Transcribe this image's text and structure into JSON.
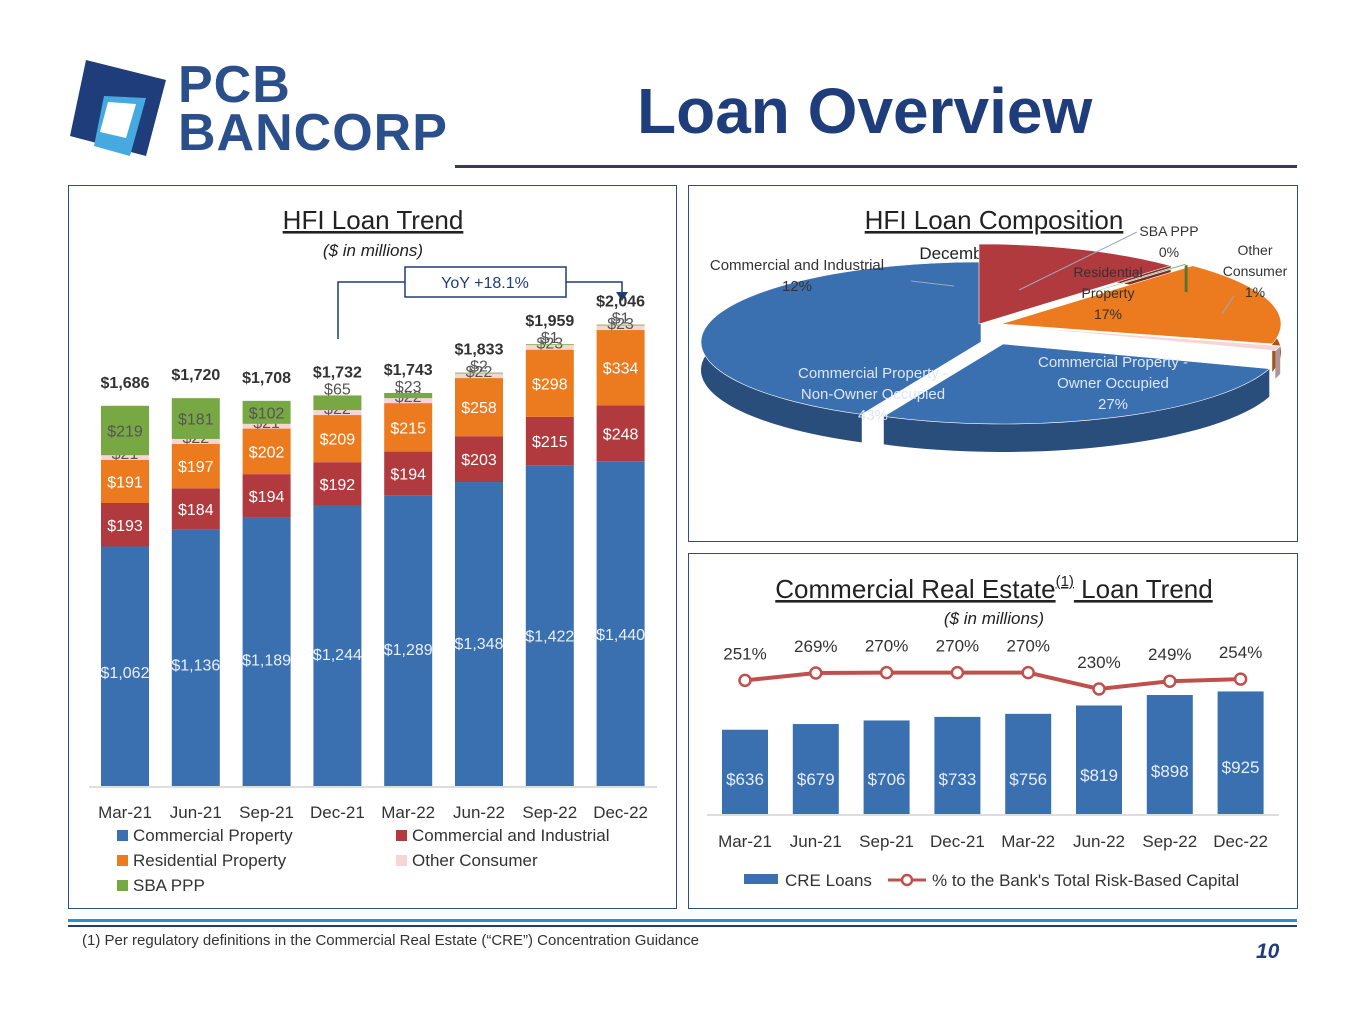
{
  "brand": {
    "name_line1": "PCB",
    "name_line2": "BANCORP",
    "colors": {
      "navy": "#1f3d7a",
      "blue": "#2e8fd0",
      "light_blue": "#46a9e0"
    }
  },
  "page": {
    "title": "Loan Overview",
    "footnote": "(1)   Per regulatory definitions in the Commercial Real Estate (“CRE”) Concentration Guidance",
    "page_number": "10"
  },
  "hfi_trend": {
    "title": "HFI Loan Trend",
    "subtitle": "($ in millions)",
    "annotation": "YoY +18.1%",
    "chart_data": {
      "type": "bar",
      "stacked": true,
      "categories": [
        "Mar-21",
        "Jun-21",
        "Sep-21",
        "Dec-21",
        "Mar-22",
        "Jun-22",
        "Sep-22",
        "Dec-22"
      ],
      "series": [
        {
          "name": "Commercial Property",
          "color": "#3a70b0",
          "values": [
            1062,
            1136,
            1189,
            1244,
            1289,
            1348,
            1422,
            1440
          ],
          "labels": [
            "$1,062",
            "$1,136",
            "$1,189",
            "$1,244",
            "$1,289",
            "$1,348",
            "$1,422",
            "$1,440"
          ]
        },
        {
          "name": "Commercial and Industrial",
          "color": "#b03a3e",
          "values": [
            193,
            184,
            194,
            192,
            194,
            203,
            215,
            248
          ],
          "labels": [
            "$193",
            "$184",
            "$194",
            "$192",
            "$194",
            "$203",
            "$215",
            "$248"
          ]
        },
        {
          "name": "Residential Property",
          "color": "#ec7a1e",
          "values": [
            191,
            197,
            202,
            209,
            215,
            258,
            298,
            334
          ],
          "labels": [
            "$191",
            "$197",
            "$202",
            "$209",
            "$215",
            "$258",
            "$298",
            "$334"
          ]
        },
        {
          "name": "Other Consumer",
          "color": "#f7d4d6",
          "values": [
            21,
            22,
            21,
            22,
            22,
            22,
            23,
            23
          ],
          "labels": [
            "$21",
            "$22",
            "$21",
            "$22",
            "$22",
            "$22",
            "$23",
            "$23"
          ]
        },
        {
          "name": "SBA PPP",
          "color": "#77a844",
          "values": [
            219,
            181,
            102,
            65,
            23,
            2,
            1,
            1
          ],
          "labels": [
            "$219",
            "$181",
            "$102",
            "$65",
            "$23",
            "$2",
            "$1",
            "$1"
          ]
        }
      ],
      "totals": [
        "$1,686",
        "$1,720",
        "$1,708",
        "$1,732",
        "$1,743",
        "$1,833",
        "$1,959",
        "$2,046"
      ],
      "legend": [
        {
          "name": "Commercial Property",
          "color": "#3a70b0"
        },
        {
          "name": "Commercial and Industrial",
          "color": "#b03a3e"
        },
        {
          "name": "Residential Property",
          "color": "#ec7a1e"
        },
        {
          "name": "Other Consumer",
          "color": "#f7d4d6"
        },
        {
          "name": "SBA PPP",
          "color": "#77a844"
        }
      ],
      "legend_position": "bottom",
      "ylim": [
        0,
        2150
      ]
    }
  },
  "hfi_comp": {
    "title": "HFI Loan Composition",
    "subtitle": "December 31, 2022",
    "chart_data": {
      "type": "pie",
      "style": "3d-exploded",
      "slices": [
        {
          "name": "Commercial Property - Owner Occupied",
          "value": 27,
          "label_lines": [
            "Commercial Property -",
            "Owner Occupied",
            "27%"
          ],
          "color": "#3a70b0"
        },
        {
          "name": "Commercial Property - Non-Owner Occupied",
          "value": 43,
          "label_lines": [
            "Commercial Property -",
            "Non-Owner Occupied",
            "43%"
          ],
          "color": "#3a70b0"
        },
        {
          "name": "Commercial and Industrial",
          "value": 12,
          "label_lines": [
            "Commercial and Industrial",
            "12%"
          ],
          "color": "#b03a3e"
        },
        {
          "name": "SBA PPP",
          "value": 0,
          "label_lines": [
            "SBA PPP",
            "0%"
          ],
          "color": "#77a844"
        },
        {
          "name": "Residential Property",
          "value": 17,
          "label_lines": [
            "Residential",
            "Property",
            "17%"
          ],
          "color": "#ec7a1e"
        },
        {
          "name": "Other Consumer",
          "value": 1,
          "label_lines": [
            "Other",
            "Consumer",
            "1%"
          ],
          "color": "#f7d4d6"
        }
      ]
    }
  },
  "cre_trend": {
    "title_main": "Commercial Real Estate",
    "title_sup": "(1)",
    "title_end": " Loan Trend",
    "subtitle": "($ in millions)",
    "chart_data": {
      "type": "bar",
      "categories": [
        "Mar-21",
        "Jun-21",
        "Sep-21",
        "Dec-21",
        "Mar-22",
        "Jun-22",
        "Sep-22",
        "Dec-22"
      ],
      "series": [
        {
          "name": "CRE Loans",
          "color": "#3a70b0",
          "values": [
            636,
            679,
            706,
            733,
            756,
            819,
            898,
            925
          ],
          "labels": [
            "$636",
            "$679",
            "$706",
            "$733",
            "$756",
            "$819",
            "$898",
            "$925"
          ]
        }
      ],
      "line_series": {
        "name": "% to the Bank's Total Risk-Based Capital",
        "color": "#c0504d",
        "values": [
          251,
          269,
          270,
          270,
          270,
          230,
          249,
          254
        ],
        "labels": [
          "251%",
          "269%",
          "270%",
          "270%",
          "270%",
          "230%",
          "249%",
          "254%"
        ]
      },
      "legend_position": "bottom"
    }
  }
}
